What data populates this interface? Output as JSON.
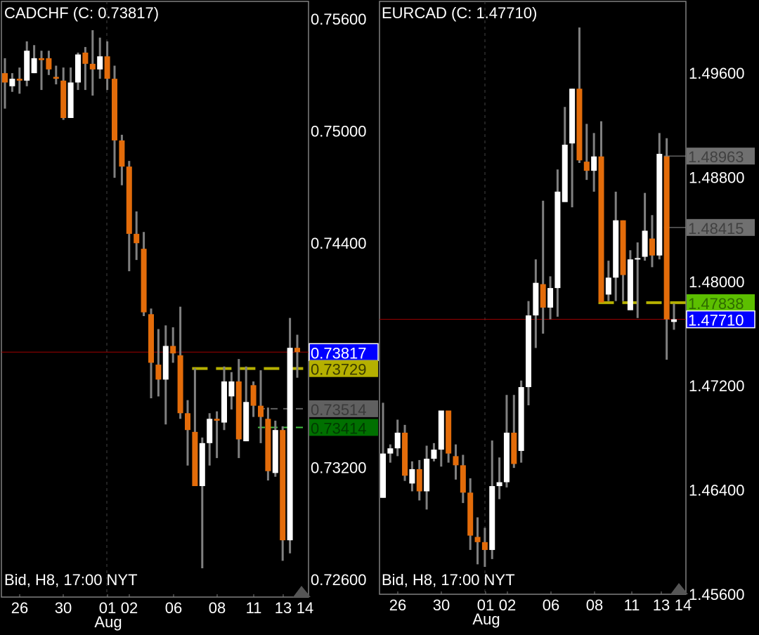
{
  "chart_data": [
    {
      "type": "candlestick",
      "title": "CADCHF (C: 0.73817)",
      "footer": "Bid, H8, 17:00 NYT",
      "ylim": [
        0.72506,
        0.75694
      ],
      "y_ticks": [
        "0.75600",
        "0.75000",
        "0.74400",
        "0.73200",
        "0.72600"
      ],
      "x_ticks": [
        "26",
        "30",
        "01",
        "02",
        "06",
        "08",
        "11",
        "13",
        "14"
      ],
      "x_month_label": "Aug",
      "colors": {
        "bull": "#ffffff",
        "bear": "#e36c0a",
        "wick": "#808080",
        "border": "#808080",
        "last_line": "#a00000"
      },
      "candles_ohlc": [
        [
          0.7531,
          0.7539,
          0.7512,
          0.7526
        ],
        [
          0.7524,
          0.7531,
          0.7521,
          0.7528
        ],
        [
          0.7528,
          0.7534,
          0.752,
          0.7527
        ],
        [
          0.7527,
          0.7548,
          0.7524,
          0.7543
        ],
        [
          0.7531,
          0.7546,
          0.7531,
          0.7539
        ],
        [
          0.7539,
          0.7543,
          0.7522,
          0.7538
        ],
        [
          0.7539,
          0.7543,
          0.753,
          0.7533
        ],
        [
          0.7529,
          0.7535,
          0.7525,
          0.7528
        ],
        [
          0.7527,
          0.7534,
          0.7506,
          0.7507
        ],
        [
          0.7507,
          0.7534,
          0.7507,
          0.7526
        ],
        [
          0.7526,
          0.7542,
          0.7522,
          0.7541
        ],
        [
          0.7542,
          0.7545,
          0.7522,
          0.7536
        ],
        [
          0.7536,
          0.7554,
          0.7519,
          0.7533
        ],
        [
          0.7533,
          0.755,
          0.7528,
          0.754
        ],
        [
          0.754,
          0.7548,
          0.7522,
          0.7528
        ],
        [
          0.7528,
          0.7535,
          0.7475,
          0.7495
        ],
        [
          0.7495,
          0.7498,
          0.7471,
          0.7481
        ],
        [
          0.7481,
          0.7484,
          0.7425,
          0.7445
        ],
        [
          0.7445,
          0.7457,
          0.7431,
          0.744
        ],
        [
          0.7437,
          0.7446,
          0.7401,
          0.7403
        ],
        [
          0.7402,
          0.7405,
          0.7357,
          0.7376
        ],
        [
          0.7375,
          0.7394,
          0.7358,
          0.7367
        ],
        [
          0.7367,
          0.7396,
          0.7343,
          0.7385
        ],
        [
          0.7385,
          0.7395,
          0.7376,
          0.7381
        ],
        [
          0.738,
          0.7406,
          0.7346,
          0.7349
        ],
        [
          0.7349,
          0.7356,
          0.7321,
          0.734
        ],
        [
          0.7339,
          0.7373,
          0.731,
          0.731
        ],
        [
          0.731,
          0.7336,
          0.7266,
          0.7333
        ],
        [
          0.7333,
          0.7349,
          0.7321,
          0.7346
        ],
        [
          0.7346,
          0.735,
          0.7325,
          0.7345
        ],
        [
          0.7344,
          0.7374,
          0.734,
          0.7366
        ],
        [
          0.7358,
          0.7371,
          0.7351,
          0.7366
        ],
        [
          0.7366,
          0.7378,
          0.7325,
          0.7335
        ],
        [
          0.7334,
          0.7374,
          0.7334,
          0.7355
        ],
        [
          0.7364,
          0.7366,
          0.7347,
          0.7353
        ],
        [
          0.7353,
          0.7372,
          0.7333,
          0.7347
        ],
        [
          0.7346,
          0.7352,
          0.7313,
          0.7318
        ],
        [
          0.7317,
          0.7345,
          0.7315,
          0.734
        ],
        [
          0.734,
          0.7342,
          0.727,
          0.7281
        ],
        [
          0.7281,
          0.74,
          0.7274,
          0.7384
        ],
        [
          0.7384,
          0.7391,
          0.7368,
          0.73817
        ]
      ],
      "price_tags": [
        {
          "label": "0.73817",
          "value": 0.73817,
          "bg": "#0000ff",
          "fg": "#ffffff",
          "line": "solid",
          "line_color": "#a00000",
          "line_from_candle": 0,
          "boxed": true
        },
        {
          "label": "0.73729",
          "value": 0.73729,
          "bg": "#b5b000",
          "fg": "#3a3a00",
          "line": "dashed-thick",
          "line_color": "#b5b000",
          "line_from_candle": 26
        },
        {
          "label": "0.73514",
          "value": 0.73514,
          "bg": "#606060",
          "fg": "#3a3a3a",
          "line": "dashed",
          "line_color": "#606060",
          "line_from_candle": 35
        },
        {
          "label": "0.73414",
          "value": 0.73414,
          "bg": "#007000",
          "fg": "#003a00",
          "line": "dashed",
          "line_color": "#40c040",
          "line_from_candle": 35
        }
      ]
    },
    {
      "type": "candlestick",
      "title": "EURCAD (C: 1.47710)",
      "footer": "Bid, H8, 17:00 NYT",
      "ylim": [
        1.456,
        1.5015
      ],
      "y_ticks": [
        "1.49600",
        "1.48800",
        "1.48000",
        "1.47200",
        "1.46400",
        "1.45600"
      ],
      "x_ticks": [
        "26",
        "30",
        "01",
        "02",
        "06",
        "08",
        "11",
        "13",
        "14"
      ],
      "x_month_label": "Aug",
      "colors": {
        "bull": "#ffffff",
        "bear": "#e36c0a",
        "wick": "#808080",
        "border": "#808080",
        "last_line": "#a00000"
      },
      "candles_ohlc": [
        [
          1.4634,
          1.4707,
          1.4634,
          1.4668
        ],
        [
          1.4668,
          1.4675,
          1.4661,
          1.4672
        ],
        [
          1.4672,
          1.4694,
          1.4666,
          1.4684
        ],
        [
          1.4684,
          1.469,
          1.4647,
          1.4651
        ],
        [
          1.4645,
          1.4662,
          1.4639,
          1.4656
        ],
        [
          1.4656,
          1.4663,
          1.4632,
          1.4639
        ],
        [
          1.4639,
          1.4674,
          1.4625,
          1.4664
        ],
        [
          1.4664,
          1.4676,
          1.4662,
          1.4671
        ],
        [
          1.4671,
          1.4701,
          1.4658,
          1.4701
        ],
        [
          1.4701,
          1.4701,
          1.4661,
          1.4668
        ],
        [
          1.4666,
          1.4675,
          1.4648,
          1.4659
        ],
        [
          1.4659,
          1.4667,
          1.463,
          1.4638
        ],
        [
          1.4638,
          1.4649,
          1.4594,
          1.4605
        ],
        [
          1.4604,
          1.4619,
          1.4583,
          1.46
        ],
        [
          1.46,
          1.4611,
          1.4581,
          1.4594
        ],
        [
          1.4594,
          1.4678,
          1.4587,
          1.4643
        ],
        [
          1.4643,
          1.4665,
          1.4633,
          1.4646
        ],
        [
          1.4646,
          1.4713,
          1.4642,
          1.4684
        ],
        [
          1.4684,
          1.4713,
          1.4657,
          1.466
        ],
        [
          1.467,
          1.4724,
          1.4661,
          1.4719
        ],
        [
          1.4719,
          1.4785,
          1.4705,
          1.4774
        ],
        [
          1.4774,
          1.4817,
          1.4749,
          1.4799
        ],
        [
          1.4798,
          1.4862,
          1.476,
          1.478
        ],
        [
          1.478,
          1.4804,
          1.4771,
          1.4795
        ],
        [
          1.4795,
          1.4886,
          1.4773,
          1.4869
        ],
        [
          1.4861,
          1.4934,
          1.4861,
          1.4905
        ],
        [
          1.4906,
          1.4948,
          1.4857,
          1.4948
        ],
        [
          1.4948,
          1.4995,
          1.4891,
          1.4893
        ],
        [
          1.4892,
          1.4921,
          1.4878,
          1.4885
        ],
        [
          1.4885,
          1.4914,
          1.4869,
          1.4896
        ],
        [
          1.4896,
          1.4923,
          1.4784,
          1.4784
        ],
        [
          1.479,
          1.4816,
          1.4785,
          1.4803
        ],
        [
          1.4803,
          1.4869,
          1.4785,
          1.4847
        ],
        [
          1.4847,
          1.4847,
          1.4785,
          1.4805
        ],
        [
          1.4778,
          1.4824,
          1.4778,
          1.4817
        ],
        [
          1.4817,
          1.483,
          1.4772,
          1.4818
        ],
        [
          1.4819,
          1.4868,
          1.4816,
          1.4839
        ],
        [
          1.4833,
          1.4851,
          1.4811,
          1.482
        ],
        [
          1.482,
          1.4914,
          1.4817,
          1.4898
        ],
        [
          1.4896,
          1.491,
          1.474,
          1.4771
        ],
        [
          1.4769,
          1.4783,
          1.4763,
          1.4771
        ]
      ],
      "price_tags": [
        {
          "label": "1.48963",
          "value": 1.48963,
          "bg": "#707070",
          "fg": "#404040",
          "line": "solid",
          "line_color": "#909090",
          "line_from_candle": 39
        },
        {
          "label": "1.48415",
          "value": 1.48415,
          "bg": "#707070",
          "fg": "#404040",
          "line": "solid",
          "line_color": "#909090",
          "line_from_candle": 39
        },
        {
          "label": "1.47838",
          "value": 1.47838,
          "bg": "#5cbf00",
          "fg": "#2e6a00",
          "line": "dashed-thick",
          "line_color": "#b5b000",
          "line_from_candle": 30
        },
        {
          "label": "1.47710",
          "value": 1.4771,
          "bg": "#0000ff",
          "fg": "#ffffff",
          "line": "solid",
          "line_color": "#a00000",
          "line_from_candle": 0,
          "boxed": true
        }
      ]
    }
  ]
}
